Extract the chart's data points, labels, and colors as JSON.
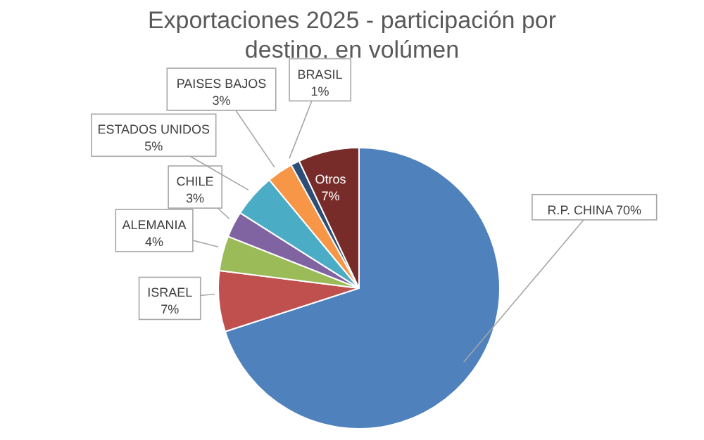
{
  "chart_data": {
    "type": "pie",
    "title": "Exportaciones 2025 - participación por destino, en volúmen",
    "categories": [
      "R.P. CHINA",
      "ISRAEL",
      "ALEMANIA",
      "CHILE",
      "ESTADOS UNIDOS",
      "PAISES BAJOS",
      "BRASIL",
      "Otros"
    ],
    "values": [
      70,
      7,
      4,
      3,
      5,
      3,
      1,
      7
    ],
    "value_labels": [
      "70%",
      "7%",
      "4%",
      "3%",
      "5%",
      "3%",
      "1%",
      "7%"
    ],
    "colors": [
      "#4f81bd",
      "#c0504d",
      "#9bbb59",
      "#8064a2",
      "#4bacc6",
      "#f79646",
      "#2c4d75",
      "#772c2a"
    ]
  }
}
